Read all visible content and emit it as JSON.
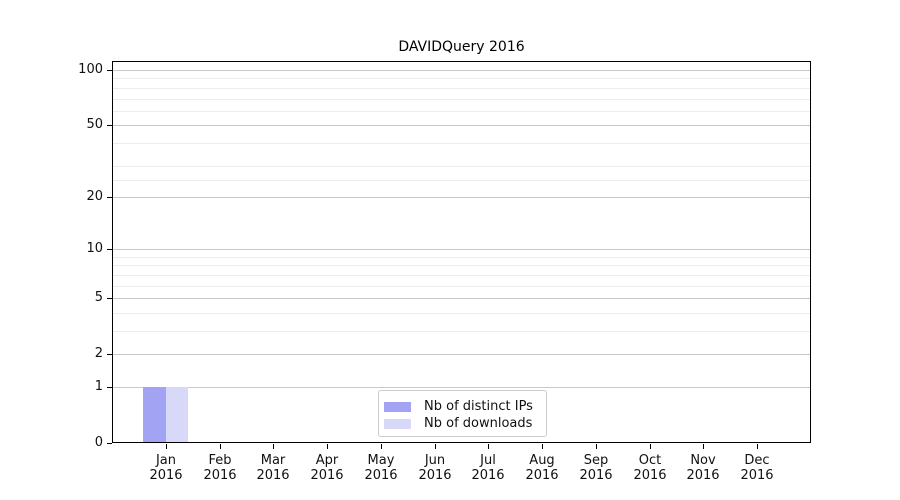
{
  "chart_data": {
    "type": "bar",
    "title": "DAVIDQuery 2016",
    "categories": [
      "Jan",
      "Feb",
      "Mar",
      "Apr",
      "May",
      "Jun",
      "Jul",
      "Aug",
      "Sep",
      "Oct",
      "Nov",
      "Dec"
    ],
    "category_year": "2016",
    "series": [
      {
        "name": "Nb of distinct IPs",
        "color": "#a3a3f3",
        "values": [
          1,
          0,
          0,
          0,
          0,
          0,
          0,
          0,
          0,
          0,
          0,
          0
        ]
      },
      {
        "name": "Nb of downloads",
        "color": "#d8d8f8",
        "values": [
          1,
          0,
          0,
          0,
          0,
          0,
          0,
          0,
          0,
          0,
          0,
          0
        ]
      }
    ],
    "xlabel": "",
    "ylabel": "",
    "y_scale": "log1p",
    "ylim": [
      0,
      112
    ],
    "y_tick_values": [
      0,
      1,
      2,
      5,
      10,
      20,
      50,
      100
    ],
    "y_tick_labels": [
      "0",
      "1",
      "2",
      "5",
      "10",
      "20",
      "50",
      "100"
    ],
    "y_minor_gridlines": [
      3,
      4,
      6,
      7,
      8,
      9,
      25,
      30,
      40,
      60,
      70,
      80,
      90
    ],
    "grid": "horizontal",
    "legend": {
      "position": "lower center",
      "entries": [
        "Nb of distinct IPs",
        "Nb of downloads"
      ]
    }
  },
  "style": {
    "background": "#ffffff",
    "spine_color": "#000000",
    "major_grid_color": "#c9c9c9",
    "minor_grid_color": "#ececec",
    "bar_color_distinct_ips": "#a3a3f3",
    "bar_color_downloads": "#d8d8f8",
    "legend_border_color": "#cccccc",
    "text_color": "#111111"
  }
}
